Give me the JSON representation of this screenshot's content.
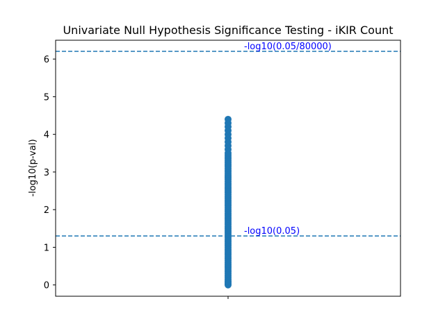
{
  "chart_data": {
    "type": "scatter",
    "title": "Univariate Null Hypothesis Significance Testing - iKIR Count",
    "xlabel": "",
    "ylabel": "-log10(p-val)",
    "ylim": [
      -0.3,
      6.5
    ],
    "yticks": [
      0,
      1,
      2,
      3,
      4,
      5,
      6
    ],
    "xticks": [
      ""
    ],
    "grid": false,
    "legend": "none",
    "series": [
      {
        "x_category": 0,
        "y_min": 0.0,
        "y_max": 4.4,
        "values": [
          0.0,
          0.02,
          0.05,
          0.08,
          0.1,
          0.15,
          0.2,
          0.25,
          0.3,
          0.35,
          0.4,
          0.45,
          0.5,
          0.55,
          0.6,
          0.65,
          0.7,
          0.75,
          0.8,
          0.85,
          0.9,
          0.95,
          1.0,
          1.05,
          1.1,
          1.15,
          1.2,
          1.25,
          1.3,
          1.35,
          1.4,
          1.45,
          1.5,
          1.55,
          1.6,
          1.65,
          1.7,
          1.75,
          1.8,
          1.85,
          1.9,
          1.95,
          2.0,
          2.05,
          2.1,
          2.15,
          2.2,
          2.25,
          2.3,
          2.35,
          2.4,
          2.45,
          2.5,
          2.55,
          2.6,
          2.65,
          2.7,
          2.75,
          2.8,
          2.85,
          2.9,
          2.95,
          3.0,
          3.05,
          3.1,
          3.15,
          3.2,
          3.25,
          3.3,
          3.35,
          3.4,
          3.45,
          3.5,
          3.6,
          3.7,
          3.8,
          3.9,
          4.0,
          4.1,
          4.2,
          4.3,
          4.4
        ]
      }
    ],
    "thresholds": [
      {
        "label": "-log10(0.05/80000)",
        "y": 6.204
      },
      {
        "label": "-log10(0.05)",
        "y": 1.301
      }
    ],
    "colors": {
      "points": "#1f77b4",
      "threshold_line": "#1f77b4",
      "annotation_text": "#0000ff"
    }
  }
}
